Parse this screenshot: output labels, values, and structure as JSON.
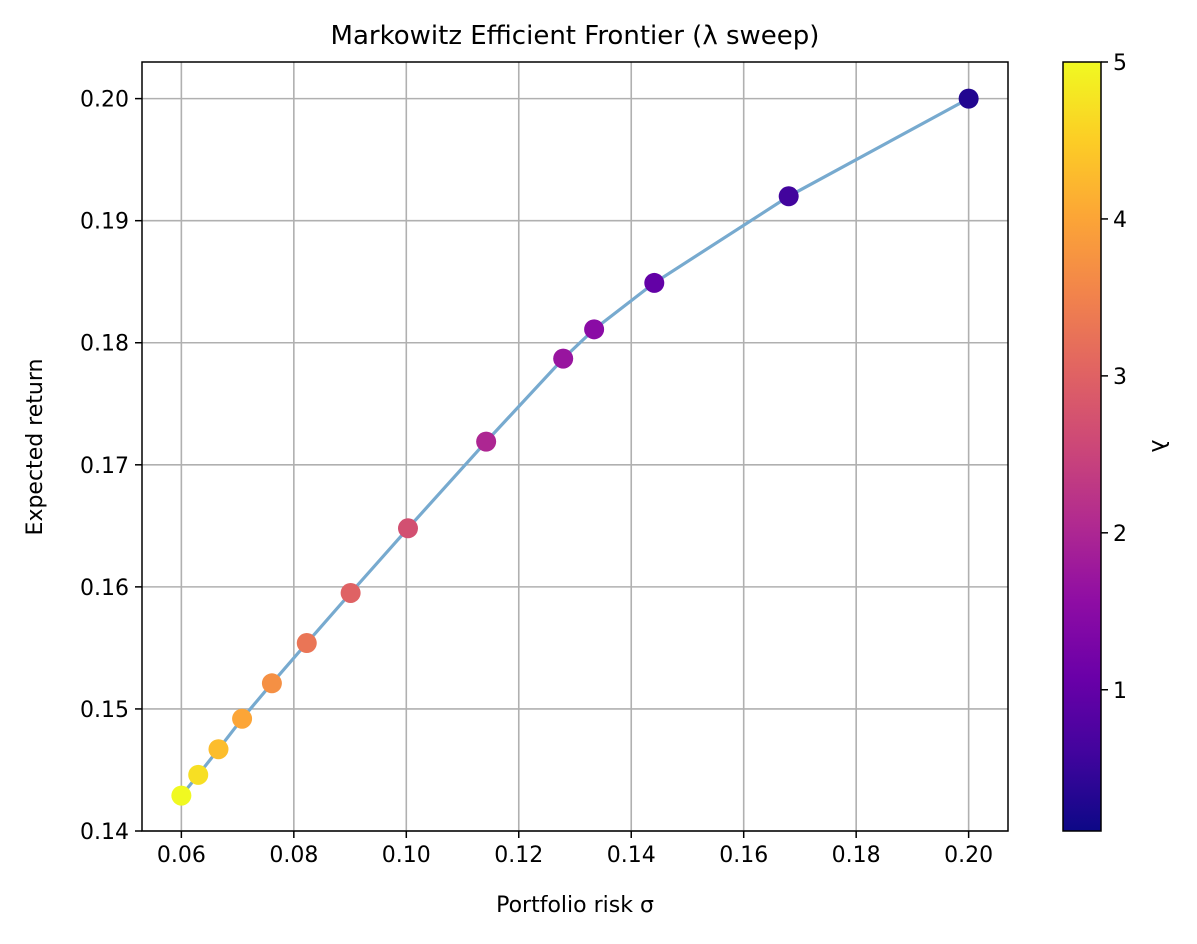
{
  "chart_data": {
    "type": "scatter",
    "title": "Markowitz Efficient Frontier (λ sweep)",
    "xlabel": "Portfolio risk σ",
    "ylabel": "Expected return",
    "xlim": [
      0.053,
      0.207
    ],
    "ylim": [
      0.14,
      0.203
    ],
    "xticks": [
      "0.06",
      "0.08",
      "0.10",
      "0.12",
      "0.14",
      "0.16",
      "0.18",
      "0.20"
    ],
    "yticks": [
      "0.14",
      "0.15",
      "0.16",
      "0.17",
      "0.18",
      "0.19",
      "0.20"
    ],
    "grid": true,
    "series": [
      {
        "line_color": "#77aacf",
        "points": [
          {
            "x": 0.06,
            "y": 0.1429,
            "lambda": 5.0
          },
          {
            "x": 0.063,
            "y": 0.1446,
            "lambda": 4.7
          },
          {
            "x": 0.0666,
            "y": 0.1467,
            "lambda": 4.3
          },
          {
            "x": 0.0708,
            "y": 0.1492,
            "lambda": 4.0
          },
          {
            "x": 0.0761,
            "y": 0.1521,
            "lambda": 3.7
          },
          {
            "x": 0.0823,
            "y": 0.1554,
            "lambda": 3.3
          },
          {
            "x": 0.0901,
            "y": 0.1595,
            "lambda": 3.0
          },
          {
            "x": 0.1003,
            "y": 0.1648,
            "lambda": 2.7
          },
          {
            "x": 0.1142,
            "y": 0.1719,
            "lambda": 2.0
          },
          {
            "x": 0.1279,
            "y": 0.1787,
            "lambda": 1.7
          },
          {
            "x": 0.1334,
            "y": 0.1811,
            "lambda": 1.5
          },
          {
            "x": 0.1441,
            "y": 0.1849,
            "lambda": 1.0
          },
          {
            "x": 0.168,
            "y": 0.192,
            "lambda": 0.6
          },
          {
            "x": 0.2,
            "y": 0.2,
            "lambda": 0.3
          }
        ]
      }
    ],
    "colorbar": {
      "label": "λ",
      "colormap": "plasma",
      "range": [
        0.1,
        5.0
      ],
      "ticks": [
        "1",
        "2",
        "3",
        "4",
        "5"
      ]
    }
  }
}
